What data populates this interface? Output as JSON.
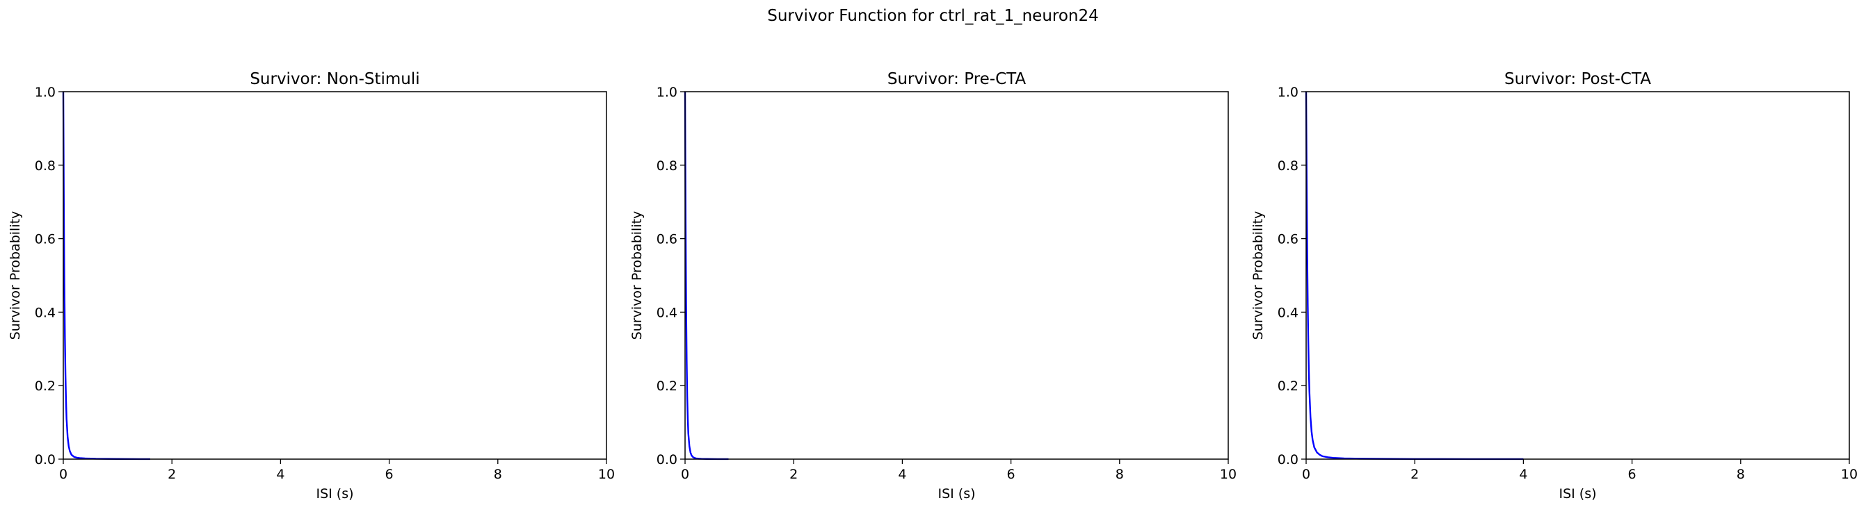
{
  "figure": {
    "title": "Survivor Function for ctrl_rat_1_neuron24"
  },
  "chart_data": [
    {
      "type": "line",
      "title": "Survivor: Non-Stimuli",
      "xlabel": "ISI (s)",
      "ylabel": "Survivor Probability",
      "xlim": [
        0,
        10
      ],
      "ylim": [
        0,
        1.0
      ],
      "xticks": [
        "0",
        "2",
        "4",
        "6",
        "8",
        "10"
      ],
      "yticks": [
        "0.0",
        "0.2",
        "0.4",
        "0.6",
        "0.8",
        "1.0"
      ],
      "grid": false,
      "series": [
        {
          "color": "#0000ff",
          "x": [
            0,
            0.005,
            0.01,
            0.015,
            0.02,
            0.03,
            0.04,
            0.05,
            0.06,
            0.08,
            0.1,
            0.12,
            0.15,
            0.2,
            0.25,
            0.3,
            0.4,
            0.5,
            0.6,
            0.8,
            1.0,
            1.2,
            1.4,
            1.6
          ],
          "y": [
            1.0,
            0.85,
            0.7,
            0.58,
            0.48,
            0.33,
            0.23,
            0.16,
            0.11,
            0.06,
            0.035,
            0.022,
            0.012,
            0.006,
            0.004,
            0.003,
            0.002,
            0.0015,
            0.001,
            0.0007,
            0.0005,
            0.0003,
            0.0002,
            0.0001
          ]
        }
      ]
    },
    {
      "type": "line",
      "title": "Survivor: Pre-CTA",
      "xlabel": "ISI (s)",
      "ylabel": "Survivor Probability",
      "xlim": [
        0,
        10
      ],
      "ylim": [
        0,
        1.0
      ],
      "xticks": [
        "0",
        "2",
        "4",
        "6",
        "8",
        "10"
      ],
      "yticks": [
        "0.0",
        "0.2",
        "0.4",
        "0.6",
        "0.8",
        "1.0"
      ],
      "grid": false,
      "series": [
        {
          "color": "#0000ff",
          "x": [
            0,
            0.005,
            0.01,
            0.015,
            0.02,
            0.03,
            0.04,
            0.05,
            0.06,
            0.08,
            0.1,
            0.12,
            0.15,
            0.2,
            0.25,
            0.3,
            0.4,
            0.5,
            0.6,
            0.7,
            0.8
          ],
          "y": [
            1.0,
            0.82,
            0.66,
            0.53,
            0.42,
            0.27,
            0.17,
            0.11,
            0.07,
            0.035,
            0.018,
            0.01,
            0.005,
            0.002,
            0.0012,
            0.0008,
            0.0005,
            0.0003,
            0.0002,
            0.0001,
            0.0001
          ]
        }
      ]
    },
    {
      "type": "line",
      "title": "Survivor: Post-CTA",
      "xlabel": "ISI (s)",
      "ylabel": "Survivor Probability",
      "xlim": [
        0,
        10
      ],
      "ylim": [
        0,
        1.0
      ],
      "xticks": [
        "0",
        "2",
        "4",
        "6",
        "8",
        "10"
      ],
      "yticks": [
        "0.0",
        "0.2",
        "0.4",
        "0.6",
        "0.8",
        "1.0"
      ],
      "grid": false,
      "series": [
        {
          "color": "#0000ff",
          "x": [
            0,
            0.005,
            0.01,
            0.015,
            0.02,
            0.03,
            0.04,
            0.05,
            0.06,
            0.08,
            0.1,
            0.12,
            0.15,
            0.2,
            0.25,
            0.3,
            0.4,
            0.5,
            0.7,
            1.0,
            1.5,
            2.0,
            2.5,
            3.0,
            3.5,
            4.0
          ],
          "y": [
            1.0,
            0.88,
            0.76,
            0.65,
            0.56,
            0.42,
            0.32,
            0.24,
            0.185,
            0.115,
            0.075,
            0.052,
            0.032,
            0.018,
            0.012,
            0.008,
            0.005,
            0.0035,
            0.002,
            0.0012,
            0.0007,
            0.0004,
            0.0003,
            0.0002,
            0.0001,
            0.0001
          ]
        }
      ]
    }
  ]
}
